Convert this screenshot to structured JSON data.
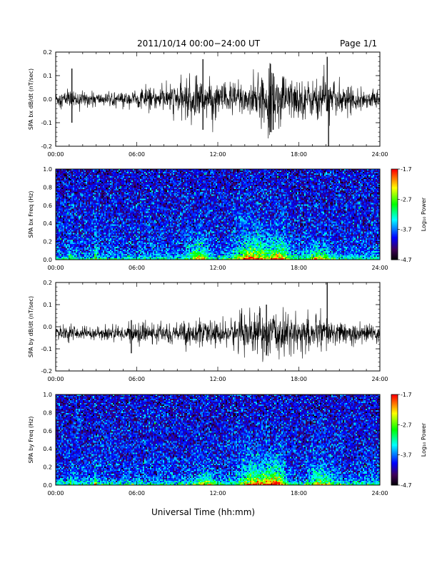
{
  "header": {
    "title": "2011/10/14  00:00−24:00 UT",
    "page": "Page 1/1"
  },
  "xlabel": "Universal Time (hh:mm)",
  "chart_data": [
    {
      "type": "line",
      "panel": "bx-waveform",
      "ylabel": "SPA bx dB/dt (nT/sec)",
      "x_tick_labels": [
        "00:00",
        "06:00",
        "12:00",
        "18:00",
        "24:00"
      ],
      "xlim": [
        0,
        24
      ],
      "ylim": [
        -0.2,
        0.2
      ],
      "y_tick_labels": [
        "-0.2",
        "-0.1",
        "0.0",
        "0.1",
        "0.2"
      ],
      "y_ticks": [
        -0.2,
        -0.1,
        0.0,
        0.1,
        0.2
      ],
      "baseline": 0.0,
      "series_color": "#000000",
      "envelope": {
        "x": [
          0,
          1,
          2,
          3,
          4,
          5,
          6,
          7,
          8,
          9,
          10,
          11,
          12,
          13,
          14,
          15,
          16,
          17,
          18,
          19,
          20,
          21,
          22,
          23,
          24
        ],
        "amplitude": [
          0.035,
          0.04,
          0.035,
          0.03,
          0.025,
          0.03,
          0.04,
          0.045,
          0.05,
          0.07,
          0.09,
          0.09,
          0.07,
          0.08,
          0.08,
          0.09,
          0.12,
          0.1,
          0.09,
          0.08,
          0.1,
          0.06,
          0.05,
          0.04,
          0.04
        ]
      },
      "spikes": [
        {
          "x": 1.2,
          "max": 0.13,
          "min": -0.1
        },
        {
          "x": 10.9,
          "max": 0.17,
          "min": -0.13
        },
        {
          "x": 15.9,
          "max": 0.15,
          "min": -0.14
        },
        {
          "x": 16.1,
          "max": 0.11,
          "min": -0.13
        },
        {
          "x": 20.1,
          "max": 0.18,
          "min": -0.05
        },
        {
          "x": 20.2,
          "max": 0.04,
          "min": -0.2
        }
      ]
    },
    {
      "type": "heatmap",
      "panel": "bx-spectrogram",
      "ylabel": "SPA bx Freq (Hz)",
      "x_tick_labels": [
        "00:00",
        "06:00",
        "12:00",
        "18:00",
        "24:00"
      ],
      "xlim": [
        0,
        24
      ],
      "ylim": [
        0,
        1.0
      ],
      "y_tick_labels": [
        "0.0",
        "0.2",
        "0.4",
        "0.6",
        "0.8",
        "1.0"
      ],
      "y_ticks": [
        0.0,
        0.2,
        0.4,
        0.6,
        0.8,
        1.0
      ],
      "colorbar": {
        "label": "Log₁₀ Power",
        "range": [
          -4.7,
          -1.7
        ],
        "tick_labels": [
          "-1.7",
          "-2.7",
          "-3.7",
          "-4.7"
        ],
        "ticks": [
          -1.7,
          -2.7,
          -3.7,
          -4.7
        ]
      },
      "background_log_power": -3.9,
      "activity": [
        {
          "x": 14.5,
          "width": 2.8,
          "f_top": 0.35,
          "level": 1.0
        },
        {
          "x": 16.5,
          "width": 1.8,
          "f_top": 0.3,
          "level": 0.9
        },
        {
          "x": 10.5,
          "width": 1.6,
          "f_top": 0.28,
          "level": 0.8
        },
        {
          "x": 19.5,
          "width": 2.0,
          "f_top": 0.2,
          "level": 0.7
        },
        {
          "x": 2.9,
          "width": 0.15,
          "f_top": 0.45,
          "level": 0.8
        },
        {
          "x": 1.0,
          "width": 0.15,
          "f_top": 0.3,
          "level": 0.6
        }
      ]
    },
    {
      "type": "line",
      "panel": "by-waveform",
      "ylabel": "SPA by dB/dt (nT/sec)",
      "x_tick_labels": [
        "00:00",
        "06:00",
        "12:00",
        "18:00",
        "24:00"
      ],
      "xlim": [
        0,
        24
      ],
      "ylim": [
        -0.2,
        0.2
      ],
      "y_tick_labels": [
        "-0.2",
        "-0.1",
        "0.0",
        "0.1",
        "0.2"
      ],
      "y_ticks": [
        -0.2,
        -0.1,
        0.0,
        0.1,
        0.2
      ],
      "baseline": -0.03,
      "series_color": "#000000",
      "envelope": {
        "x": [
          0,
          1,
          2,
          3,
          4,
          5,
          6,
          7,
          8,
          9,
          10,
          11,
          12,
          13,
          14,
          15,
          16,
          17,
          18,
          19,
          20,
          21,
          22,
          23,
          24
        ],
        "amplitude": [
          0.03,
          0.035,
          0.03,
          0.03,
          0.03,
          0.035,
          0.045,
          0.04,
          0.04,
          0.05,
          0.06,
          0.05,
          0.055,
          0.07,
          0.08,
          0.09,
          0.1,
          0.09,
          0.08,
          0.07,
          0.08,
          0.05,
          0.045,
          0.04,
          0.04
        ]
      },
      "spikes": [
        {
          "x": 5.6,
          "max": 0.03,
          "min": -0.12
        },
        {
          "x": 15.6,
          "max": 0.1,
          "min": -0.13
        },
        {
          "x": 20.1,
          "max": 0.2,
          "min": -0.05
        }
      ]
    },
    {
      "type": "heatmap",
      "panel": "by-spectrogram",
      "ylabel": "SPA by Freq (Hz)",
      "x_tick_labels": [
        "00:00",
        "06:00",
        "12:00",
        "18:00",
        "24:00"
      ],
      "xlim": [
        0,
        24
      ],
      "ylim": [
        0,
        1.0
      ],
      "y_tick_labels": [
        "0.0",
        "0.2",
        "0.4",
        "0.6",
        "0.8",
        "1.0"
      ],
      "y_ticks": [
        0.0,
        0.2,
        0.4,
        0.6,
        0.8,
        1.0
      ],
      "colorbar": {
        "label": "Log₁₀ Power",
        "range": [
          -4.7,
          -1.7
        ],
        "tick_labels": [
          "-1.7",
          "-2.7",
          "-3.7",
          "-4.7"
        ],
        "ticks": [
          -1.7,
          -2.7,
          -3.7,
          -4.7
        ]
      },
      "background_log_power": -3.9,
      "activity": [
        {
          "x": 14.8,
          "width": 3.0,
          "f_top": 0.3,
          "level": 1.0
        },
        {
          "x": 16.3,
          "width": 1.6,
          "f_top": 0.3,
          "level": 0.9
        },
        {
          "x": 11.0,
          "width": 1.6,
          "f_top": 0.18,
          "level": 0.7
        },
        {
          "x": 19.6,
          "width": 1.8,
          "f_top": 0.25,
          "level": 0.75
        },
        {
          "x": 2.9,
          "width": 0.15,
          "f_top": 0.35,
          "level": 0.8
        },
        {
          "x": 1.0,
          "width": 0.15,
          "f_top": 0.2,
          "level": 0.6
        }
      ]
    }
  ]
}
